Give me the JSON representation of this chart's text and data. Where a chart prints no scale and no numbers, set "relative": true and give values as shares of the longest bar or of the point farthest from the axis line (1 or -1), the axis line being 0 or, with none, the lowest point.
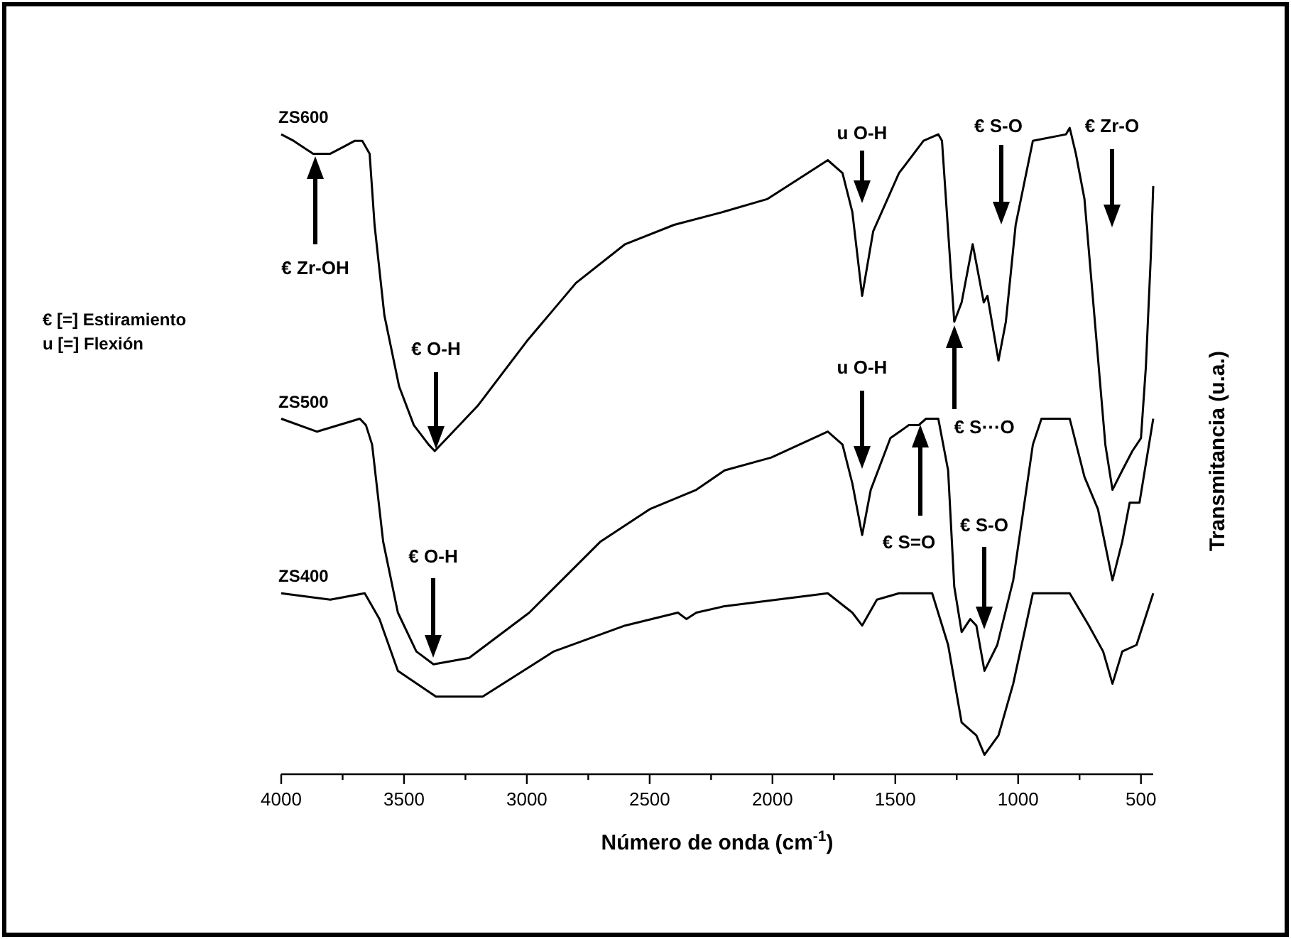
{
  "chart_data": {
    "type": "line",
    "relative": true,
    "xlabel": "Número de onda (cm$^{-1}$)",
    "ylabel": "Transmitancia (u.a.)",
    "xlim": [
      4000,
      450
    ],
    "xticks": [
      4000,
      {
        "value": 3750,
        "label": null
      },
      3500,
      {
        "value": 3250,
        "label": null
      },
      3000,
      {
        "value": 2750,
        "label": null
      },
      2500,
      {
        "value": 2250,
        "label": null
      },
      2000,
      {
        "value": 1750,
        "label": null
      },
      1500,
      {
        "value": 1250,
        "label": null
      },
      1000,
      {
        "value": 750,
        "label": null
      },
      500
    ],
    "legend": false,
    "grid": false,
    "marker": "none",
    "line_style": "solid",
    "series": [
      {
        "name": "ZS600",
        "color": "#000000",
        "x": [
          4000,
          3950,
          3870,
          3800,
          3750,
          3700,
          3670,
          3640,
          3620,
          3580,
          3520,
          3460,
          3400,
          3375,
          3300,
          3200,
          3000,
          2800,
          2600,
          2400,
          2200,
          2020,
          1775,
          1715,
          1675,
          1635,
          1590,
          1485,
          1385,
          1325,
          1310,
          1285,
          1260,
          1230,
          1185,
          1140,
          1125,
          1080,
          1050,
          1010,
          940,
          805,
          790,
          765,
          730,
          645,
          616,
          576,
          535,
          500,
          480,
          460,
          450
        ],
        "values": [
          0.99,
          0.98,
          0.96,
          0.96,
          0.97,
          0.98,
          0.98,
          0.96,
          0.85,
          0.71,
          0.6,
          0.54,
          0.51,
          0.5,
          0.53,
          0.57,
          0.67,
          0.76,
          0.82,
          0.85,
          0.87,
          0.89,
          0.95,
          0.93,
          0.87,
          0.74,
          0.84,
          0.93,
          0.98,
          0.99,
          0.98,
          0.84,
          0.7,
          0.73,
          0.82,
          0.73,
          0.74,
          0.64,
          0.7,
          0.85,
          0.98,
          0.99,
          1,
          0.96,
          0.89,
          0.51,
          0.44,
          0.47,
          0.5,
          0.52,
          0.63,
          0.8,
          0.91
        ]
      },
      {
        "name": "ZS500",
        "color": "#000000",
        "x": [
          4000,
          3855,
          3680,
          3655,
          3630,
          3585,
          3525,
          3450,
          3380,
          3235,
          2990,
          2700,
          2500,
          2310,
          2195,
          2005,
          1775,
          1715,
          1675,
          1635,
          1600,
          1520,
          1445,
          1405,
          1375,
          1325,
          1285,
          1260,
          1230,
          1195,
          1170,
          1137,
          1085,
          1020,
          940,
          905,
          790,
          730,
          675,
          616,
          576,
          546,
          506,
          450
        ],
        "values": [
          0.55,
          0.53,
          0.55,
          0.54,
          0.51,
          0.36,
          0.25,
          0.19,
          0.17,
          0.18,
          0.25,
          0.36,
          0.41,
          0.44,
          0.47,
          0.49,
          0.53,
          0.51,
          0.45,
          0.37,
          0.44,
          0.52,
          0.54,
          0.54,
          0.55,
          0.55,
          0.47,
          0.29,
          0.22,
          0.24,
          0.23,
          0.16,
          0.2,
          0.3,
          0.51,
          0.55,
          0.55,
          0.46,
          0.41,
          0.3,
          0.36,
          0.42,
          0.42,
          0.55
        ]
      },
      {
        "name": "ZS400",
        "color": "#000000",
        "x": [
          4000,
          3800,
          3660,
          3600,
          3525,
          3370,
          3180,
          2890,
          2600,
          2385,
          2350,
          2310,
          2195,
          1775,
          1675,
          1635,
          1575,
          1485,
          1350,
          1285,
          1230,
          1170,
          1137,
          1080,
          1020,
          940,
          790,
          712,
          654,
          616,
          576,
          518,
          450
        ],
        "values": [
          0.28,
          0.27,
          0.28,
          0.24,
          0.16,
          0.12,
          0.12,
          0.19,
          0.23,
          0.25,
          0.24,
          0.25,
          0.26,
          0.28,
          0.25,
          0.23,
          0.27,
          0.28,
          0.28,
          0.2,
          0.08,
          0.06,
          0.03,
          0.06,
          0.14,
          0.28,
          0.28,
          0.23,
          0.19,
          0.14,
          0.19,
          0.2,
          0.28
        ]
      }
    ],
    "annotations": [
      "€ Zr-OH",
      "€ O-H",
      "u O-H",
      "€ S-O",
      "€ Zr-O",
      "€ S⋯O",
      "u O-H",
      "€ S=O",
      "€ S-O",
      "€ O-H",
      "€ [=] Estiramiento",
      "u [=] Flexión"
    ]
  }
}
